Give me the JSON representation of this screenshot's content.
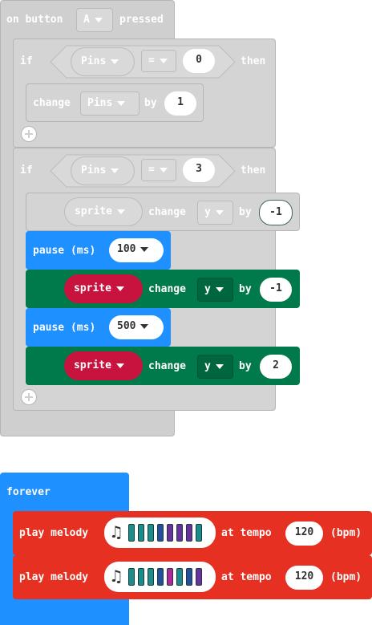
{
  "event": {
    "prefix": "on button",
    "button": "A",
    "suffix": "pressed"
  },
  "if1": {
    "if": "if",
    "var": "Pins",
    "op": "=",
    "value": "0",
    "then": "then"
  },
  "change1": {
    "label": "change",
    "var": "Pins",
    "by": "by",
    "value": "1"
  },
  "if2": {
    "if": "if",
    "var": "Pins",
    "op": "=",
    "value": "3",
    "then": "then"
  },
  "change2": {
    "sprite": "sprite",
    "label": "change",
    "axis": "y",
    "by": "by",
    "value": "-1"
  },
  "pause1": {
    "label": "pause (ms)",
    "value": "100"
  },
  "change3": {
    "sprite": "sprite",
    "label": "change",
    "axis": "y",
    "by": "by",
    "value": "-1"
  },
  "pause2": {
    "label": "pause (ms)",
    "value": "500"
  },
  "change4": {
    "sprite": "sprite",
    "label": "change",
    "axis": "y",
    "by": "by",
    "value": "2"
  },
  "forever": {
    "label": "forever"
  },
  "melody1": {
    "label": "play melody",
    "at": "at tempo",
    "tempo": "120",
    "unit": "(bpm)",
    "notes": [
      "#1b8c8c",
      "#1b8c8c",
      "#1b8c8c",
      "#234f9e",
      "#6b2f9e",
      "#6b2f9e",
      "#6b2f9e",
      "#1b8c8c"
    ]
  },
  "melody2": {
    "label": "play melody",
    "at": "at tempo",
    "tempo": "120",
    "unit": "(bpm)",
    "notes": [
      "#1b8c8c",
      "#1b8c8c",
      "#1b8c8c",
      "#234f9e",
      "#b4249c",
      "#1b8c8c",
      "#234f9e",
      "#6b2f9e"
    ]
  },
  "colors": {
    "disabled": "#cfcfcf",
    "loops": "#1e90ff",
    "sprite": "#007a4b",
    "spriteVar": "#c8133e",
    "music": "#e63022"
  }
}
